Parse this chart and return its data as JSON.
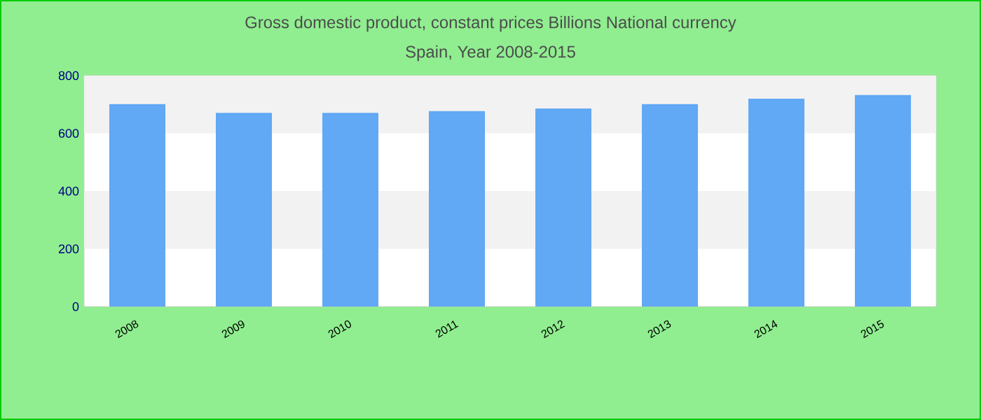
{
  "chart_data": {
    "type": "bar",
    "title": "Gross domestic product, constant prices Billions National currency",
    "subtitle": "Spain, Year 2008-2015",
    "categories": [
      "2008",
      "2009",
      "2010",
      "2011",
      "2012",
      "2013",
      "2014",
      "2015"
    ],
    "values": [
      701,
      671,
      671,
      677,
      686,
      701,
      720,
      733
    ],
    "color": "#61a8f5",
    "ylim": [
      0,
      800
    ],
    "yticks": [
      0,
      200,
      400,
      600,
      800
    ],
    "bands": [
      {
        "axis": "y",
        "from": 200,
        "to": 400,
        "color": "#f2f2f2"
      },
      {
        "axis": "y",
        "from": 600,
        "to": 800,
        "color": "#f2f2f2"
      }
    ]
  }
}
